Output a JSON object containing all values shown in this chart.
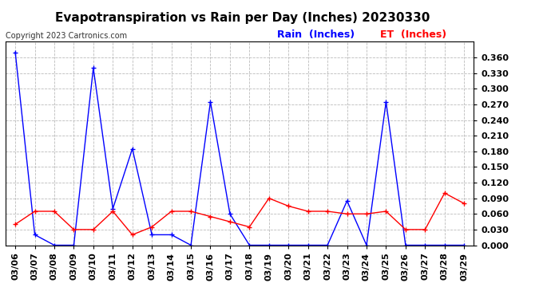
{
  "title": "Evapotranspiration vs Rain per Day (Inches) 20230330",
  "copyright": "Copyright 2023 Cartronics.com",
  "legend_rain": "Rain  (Inches)",
  "legend_et": "ET  (Inches)",
  "dates": [
    "03/06",
    "03/07",
    "03/08",
    "03/09",
    "03/10",
    "03/11",
    "03/12",
    "03/13",
    "03/14",
    "03/15",
    "03/16",
    "03/17",
    "03/18",
    "03/19",
    "03/20",
    "03/21",
    "03/22",
    "03/23",
    "03/24",
    "03/25",
    "03/26",
    "03/27",
    "03/28",
    "03/29"
  ],
  "rain": [
    0.37,
    0.02,
    0.0,
    0.0,
    0.34,
    0.07,
    0.185,
    0.02,
    0.02,
    0.0,
    0.275,
    0.06,
    0.0,
    0.0,
    0.0,
    0.0,
    0.0,
    0.085,
    0.0,
    0.275,
    0.0,
    0.0,
    0.0,
    0.0
  ],
  "et": [
    0.04,
    0.065,
    0.065,
    0.03,
    0.03,
    0.065,
    0.02,
    0.035,
    0.065,
    0.065,
    0.055,
    0.045,
    0.035,
    0.09,
    0.075,
    0.065,
    0.065,
    0.06,
    0.06,
    0.065,
    0.03,
    0.03,
    0.1,
    0.08
  ],
  "rain_color": "#0000ff",
  "et_color": "#ff0000",
  "ylim": [
    0.0,
    0.39
  ],
  "yticks": [
    0.0,
    0.03,
    0.06,
    0.09,
    0.12,
    0.15,
    0.18,
    0.21,
    0.24,
    0.27,
    0.3,
    0.33,
    0.36
  ],
  "background_color": "#ffffff",
  "grid_color": "#bbbbbb",
  "title_fontsize": 11,
  "tick_fontsize": 8,
  "legend_fontsize": 9,
  "copyright_fontsize": 7
}
